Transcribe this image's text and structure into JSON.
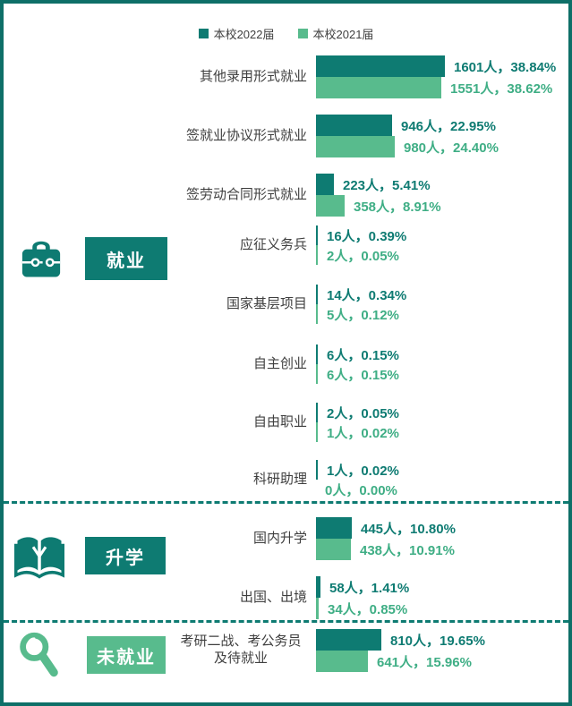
{
  "chart_data": {
    "type": "bar",
    "orientation": "horizontal",
    "unit": "人",
    "legend": [
      "本校2022届",
      "本校2021届"
    ],
    "colors": {
      "series2022": "#0e7b72",
      "series2021": "#58bb8d",
      "text2022": "#0e7b72",
      "text2021": "#3fae85",
      "category_label": "#3f3f3f",
      "frame": "#0e6f68",
      "divider": "#0e7b72",
      "unemployed_accent": "#58bb8d"
    },
    "categories": [
      "其他录用形式就业",
      "签就业协议形式就业",
      "签劳动合同形式就业",
      "应征义务兵",
      "国家基层项目",
      "自主创业",
      "自由职业",
      "科研助理",
      "国内升学",
      "出国、出境",
      "考研二战、考公务员\n及待就业"
    ],
    "series": [
      {
        "name": "本校2022届",
        "values": [
          1601,
          946,
          223,
          16,
          14,
          6,
          2,
          1,
          445,
          58,
          810
        ],
        "pcts": [
          "38.84%",
          "22.95%",
          "5.41%",
          "0.39%",
          "0.34%",
          "0.15%",
          "0.05%",
          "0.02%",
          "10.80%",
          "1.41%",
          "19.65%"
        ]
      },
      {
        "name": "本校2021届",
        "values": [
          1551,
          980,
          358,
          2,
          5,
          6,
          1,
          0,
          438,
          34,
          641
        ],
        "pcts": [
          "38.62%",
          "24.40%",
          "8.91%",
          "0.05%",
          "0.12%",
          "0.15%",
          "0.02%",
          "0.00%",
          "10.91%",
          "0.85%",
          "15.96%"
        ]
      }
    ],
    "sections": [
      {
        "label": "就业",
        "icon": "briefcase-icon",
        "category_range": [
          0,
          7
        ]
      },
      {
        "label": "升学",
        "icon": "book-icon",
        "category_range": [
          8,
          9
        ]
      },
      {
        "label": "未就业",
        "icon": "magnifier-icon",
        "category_range": [
          10,
          10
        ]
      }
    ]
  }
}
